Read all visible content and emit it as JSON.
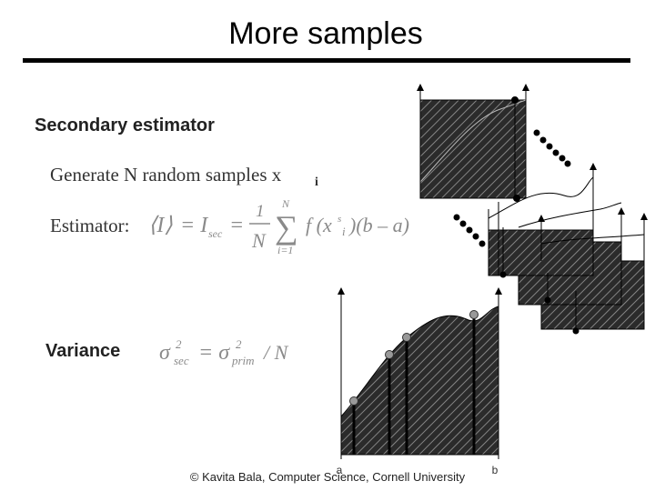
{
  "header": {
    "title": "More samples"
  },
  "body": {
    "heading": "Secondary estimator",
    "generate": {
      "text": "Generate N random samples x",
      "subscript": "i"
    },
    "estimator": {
      "label": "Estimator:",
      "formula": [
        "⟨I⟩",
        "= I",
        "sec",
        "=",
        "1",
        "N",
        "∑",
        "N",
        "i=1",
        "f (x",
        "s",
        "i",
        ")(b – a)"
      ]
    },
    "variance": {
      "label": "Variance",
      "formula": [
        "σ",
        "2",
        "sec",
        "= σ",
        "2",
        "prim",
        "/ N"
      ]
    }
  },
  "figure": {
    "axis_labels": [
      "a",
      "b"
    ]
  },
  "footer": "© Kavita Bala, Computer Science, Cornell University"
}
